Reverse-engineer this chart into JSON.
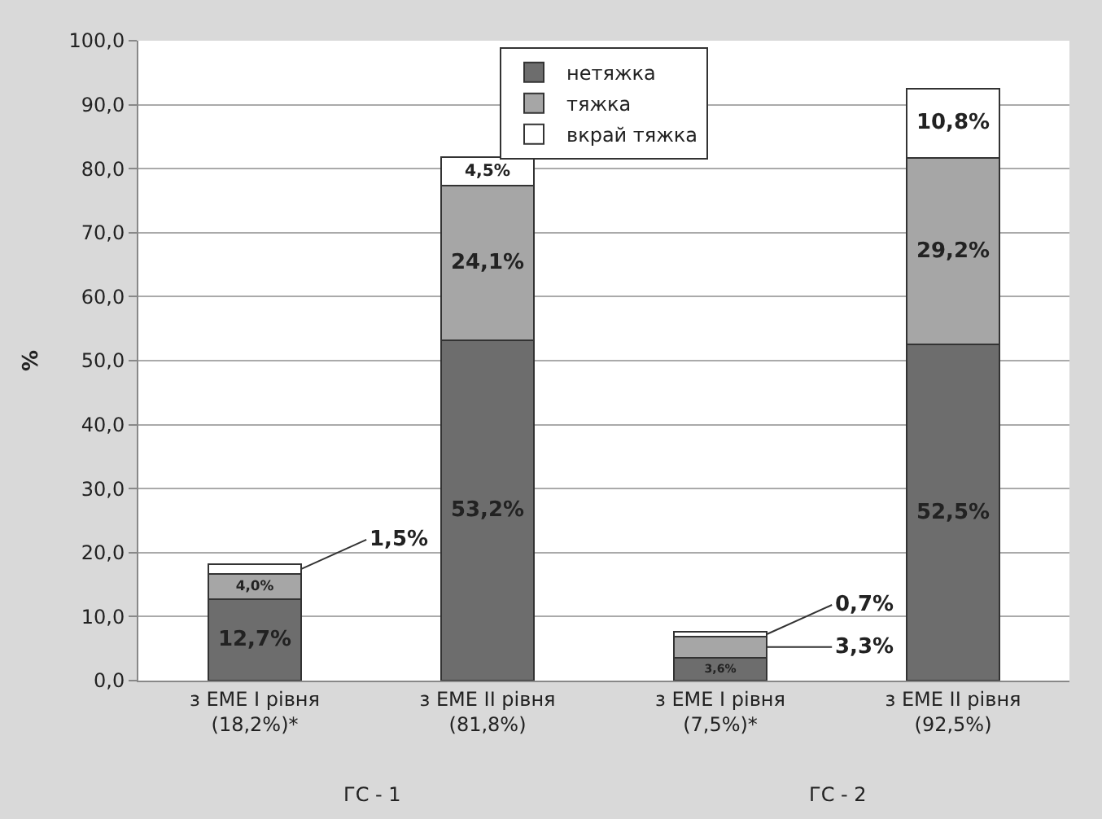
{
  "chart_data": {
    "type": "bar",
    "stacked": true,
    "ylabel": "%",
    "categories": [
      "з ЕМЕ І рівня\n(18,2%)*",
      "з ЕМЕ ІІ рівня\n(81,8%)",
      "з ЕМЕ І рівня\n(7,5%)*",
      "з ЕМЕ ІІ рівня\n(92,5%)"
    ],
    "series": [
      {
        "name": "нетяжка",
        "color": "#6d6d6d",
        "values": [
          12.7,
          53.2,
          3.6,
          52.5
        ],
        "value_labels": [
          "12,7%",
          "53,2%",
          "3,6%",
          "52,5%"
        ]
      },
      {
        "name": "тяжка",
        "color": "#a6a6a6",
        "values": [
          4.0,
          24.1,
          3.3,
          29.2
        ],
        "value_labels": [
          "4,0%",
          "24,1%",
          "3,3%",
          "29,2%"
        ]
      },
      {
        "name": "вкрай тяжка",
        "color": "#ffffff",
        "values": [
          1.5,
          4.5,
          0.7,
          10.8
        ],
        "value_labels": [
          "1,5%",
          "4,5%",
          "0,7%",
          "10,8%"
        ]
      }
    ],
    "annotations": [
      "ГС - 1",
      "ГС - 2"
    ],
    "ylim": [
      0,
      100
    ],
    "yticks": [
      {
        "value": 0,
        "label": "0,0"
      },
      {
        "value": 10,
        "label": "10,0"
      },
      {
        "value": 20,
        "label": "20,0"
      },
      {
        "value": 30,
        "label": "30,0"
      },
      {
        "value": 40,
        "label": "40,0"
      },
      {
        "value": 50,
        "label": "50,0"
      },
      {
        "value": 60,
        "label": "60,0"
      },
      {
        "value": 70,
        "label": "70,0"
      },
      {
        "value": 80,
        "label": "80,0"
      },
      {
        "value": 90,
        "label": "90,0"
      },
      {
        "value": 100,
        "label": "100,0"
      }
    ],
    "grid": "y",
    "legend": "top"
  }
}
